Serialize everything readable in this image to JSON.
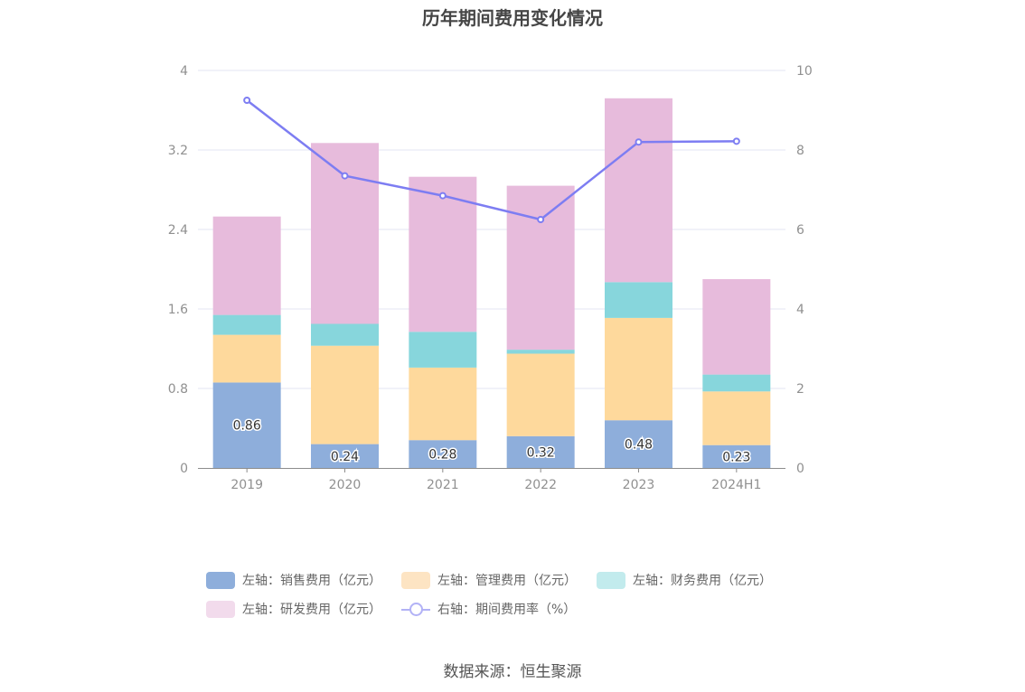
{
  "chart_data": {
    "type": "bar",
    "title": "历年期间费用变化情况",
    "categories": [
      "2019",
      "2020",
      "2021",
      "2022",
      "2023",
      "2024H1"
    ],
    "stacked": true,
    "series": [
      {
        "name": "左轴：销售费用（亿元）",
        "axis": "left",
        "type": "bar",
        "color": "#8eaedb",
        "values": [
          0.86,
          0.24,
          0.28,
          0.32,
          0.48,
          0.23
        ],
        "data_labels": [
          "0.86",
          "0.24",
          "0.28",
          "0.32",
          "0.48",
          "0.23"
        ]
      },
      {
        "name": "左轴：管理费用（亿元）",
        "axis": "left",
        "type": "bar",
        "color": "#fed99c",
        "values": [
          0.48,
          0.99,
          0.73,
          0.83,
          1.03,
          0.54
        ]
      },
      {
        "name": "左轴：财务费用（亿元）",
        "axis": "left",
        "type": "bar",
        "color": "#87d6dc",
        "values": [
          0.2,
          0.22,
          0.36,
          0.04,
          0.36,
          0.17
        ]
      },
      {
        "name": "左轴：研发费用（亿元）",
        "axis": "left",
        "type": "bar",
        "color": "#e7bbdc",
        "values": [
          0.99,
          1.82,
          1.56,
          1.65,
          1.85,
          0.96
        ]
      },
      {
        "name": "右轴：期间费用率（%）",
        "axis": "right",
        "type": "line",
        "color": "#7d7df2",
        "values": [
          9.25,
          7.35,
          6.85,
          6.25,
          8.2,
          8.22
        ]
      }
    ],
    "left_axis": {
      "min": 0,
      "max": 4,
      "ticks": [
        "0",
        "0.8",
        "1.6",
        "2.4",
        "3.2",
        "4"
      ]
    },
    "right_axis": {
      "min": 0,
      "max": 10,
      "ticks": [
        "0",
        "2",
        "4",
        "6",
        "8",
        "10"
      ]
    },
    "grid": true,
    "legend_position": "bottom",
    "legend_swatch_colors": {
      "销售费用": "#8eaedb",
      "管理费用": "#fde4c3",
      "财务费用": "#c2ebed",
      "研发费用": "#f2dbec",
      "期间费用率": "#b2b2f6"
    }
  },
  "legend": [
    [
      "左轴：销售费用（亿元）",
      "左轴：管理费用（亿元）",
      "左轴：财务费用（亿元）"
    ],
    [
      "左轴：研发费用（亿元）",
      "右轴：期间费用率（%）"
    ]
  ],
  "source": "数据来源：恒生聚源"
}
